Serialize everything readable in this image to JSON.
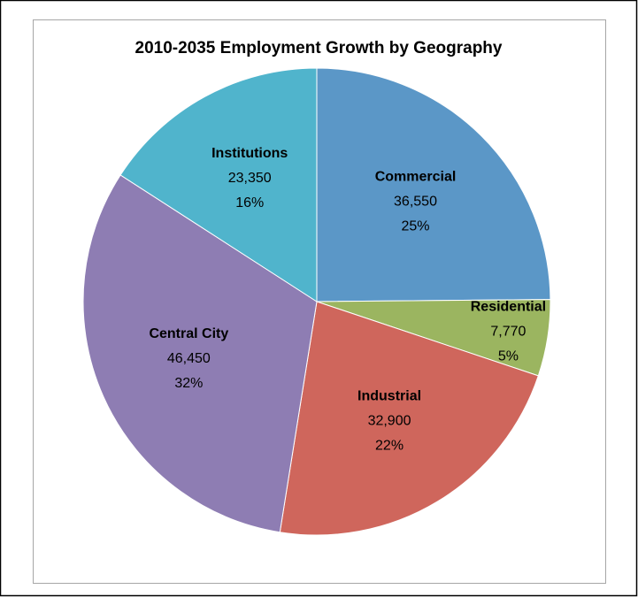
{
  "chart_data": {
    "type": "pie",
    "title": "2010-2035 Employment Growth by Geography",
    "categories": [
      "Commercial",
      "Residential",
      "Industrial",
      "Central City",
      "Institutions"
    ],
    "values": [
      36550,
      7770,
      32900,
      46450,
      23350
    ],
    "value_labels": [
      "36,550",
      "7,770",
      "32,900",
      "46,450",
      "23,350"
    ],
    "percent_labels": [
      "25%",
      "5%",
      "22%",
      "32%",
      "16%"
    ],
    "colors": [
      "#5b97c7",
      "#9bb560",
      "#cf665c",
      "#8e7db3",
      "#50b4cc"
    ]
  }
}
